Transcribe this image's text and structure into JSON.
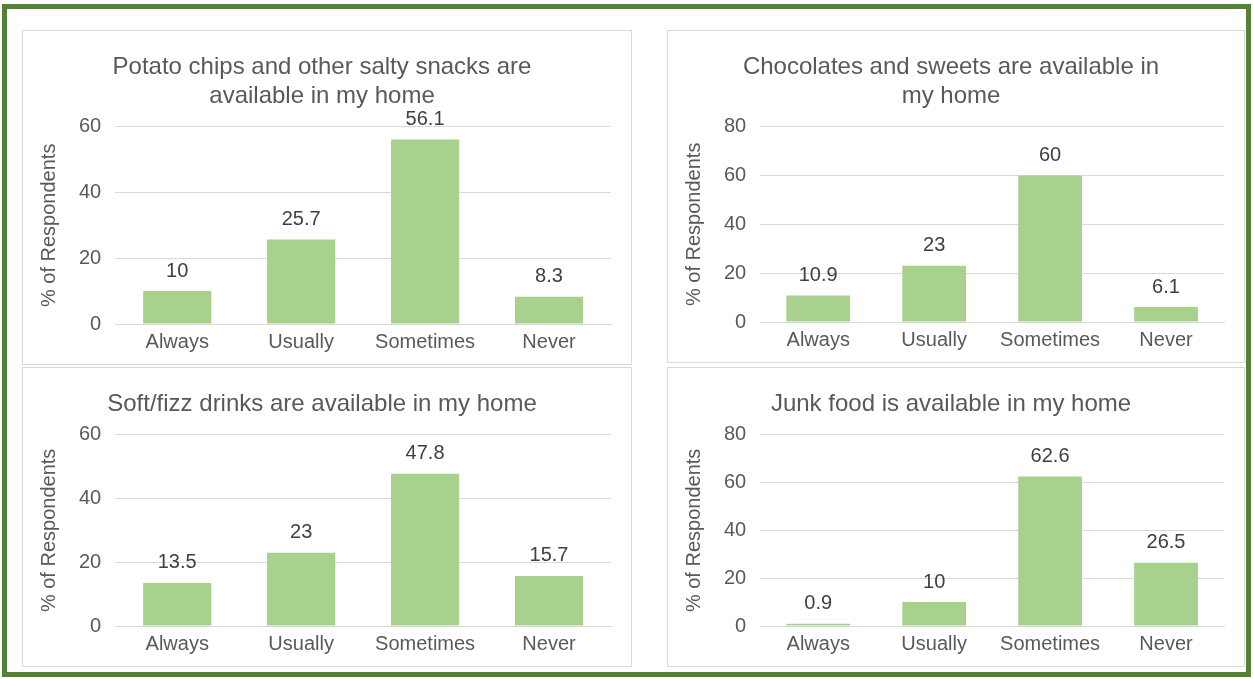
{
  "chart_data": [
    {
      "type": "bar",
      "title": "Potato chips and other salty snacks are available in my home",
      "ylabel": "% of Respondents",
      "categories": [
        "Always",
        "Usually",
        "Sometimes",
        "Never"
      ],
      "values": [
        10,
        25.7,
        56.1,
        8.3
      ],
      "color": "#a9d18e",
      "ylim": [
        0,
        60
      ],
      "yticks": [
        0,
        20,
        40,
        60
      ],
      "grid": "y",
      "data_labels": true
    },
    {
      "type": "bar",
      "title": "Chocolates and sweets are available in my home",
      "ylabel": "% of Respondents",
      "categories": [
        "Always",
        "Usually",
        "Sometimes",
        "Never"
      ],
      "values": [
        10.9,
        23,
        60,
        6.1
      ],
      "color": "#a9d18e",
      "ylim": [
        0,
        80
      ],
      "yticks": [
        0,
        20,
        40,
        60,
        80
      ],
      "grid": "y",
      "data_labels": true
    },
    {
      "type": "bar",
      "title": "Soft/fizz drinks are available in my home",
      "ylabel": "% of Respondents",
      "categories": [
        "Always",
        "Usually",
        "Sometimes",
        "Never"
      ],
      "values": [
        13.5,
        23,
        47.8,
        15.7
      ],
      "color": "#a9d18e",
      "ylim": [
        0,
        60
      ],
      "yticks": [
        0,
        20,
        40,
        60
      ],
      "grid": "y",
      "data_labels": true
    },
    {
      "type": "bar",
      "title": "Junk food is available in my home",
      "ylabel": "% of Respondents",
      "categories": [
        "Always",
        "Usually",
        "Sometimes",
        "Never"
      ],
      "values": [
        0.9,
        10,
        62.6,
        26.5
      ],
      "color": "#a9d18e",
      "ylim": [
        0,
        80
      ],
      "yticks": [
        0,
        20,
        40,
        60,
        80
      ],
      "grid": "y",
      "data_labels": true
    }
  ]
}
